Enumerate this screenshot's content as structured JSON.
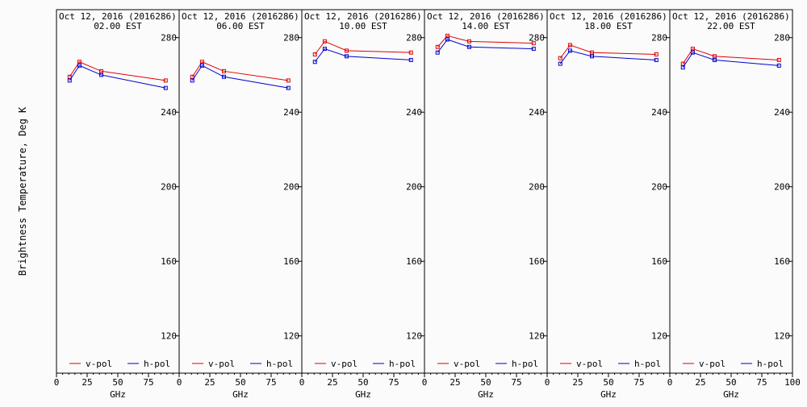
{
  "chart_data": [
    {
      "type": "line",
      "title": "Oct 12, 2016 (2016286)",
      "subtitle": "02.00 EST",
      "xlabel": "GHz",
      "ylabel": "Brightness Temperature, Deg K",
      "xlim": [
        0,
        100
      ],
      "ylim": [
        100,
        295
      ],
      "xticks": [
        0,
        25,
        50,
        75,
        100
      ],
      "yticks": [
        120,
        160,
        200,
        240,
        280
      ],
      "x": [
        10.7,
        18.7,
        36.5,
        89.0
      ],
      "series": [
        {
          "name": "v-pol",
          "color": "#e00000",
          "values": [
            259,
            267,
            262,
            257
          ]
        },
        {
          "name": "h-pol",
          "color": "#0000d0",
          "values": [
            257,
            265,
            260,
            253
          ]
        }
      ]
    },
    {
      "type": "line",
      "title": "Oct 12, 2016 (2016286)",
      "subtitle": "06.00 EST",
      "xlabel": "GHz",
      "ylabel": "",
      "xlim": [
        0,
        100
      ],
      "ylim": [
        100,
        295
      ],
      "xticks": [
        0,
        25,
        50,
        75,
        100
      ],
      "yticks": [
        120,
        160,
        200,
        240,
        280
      ],
      "x": [
        10.7,
        18.7,
        36.5,
        89.0
      ],
      "series": [
        {
          "name": "v-pol",
          "color": "#e00000",
          "values": [
            259,
            267,
            262,
            257
          ]
        },
        {
          "name": "h-pol",
          "color": "#0000d0",
          "values": [
            257,
            265,
            259,
            253
          ]
        }
      ]
    },
    {
      "type": "line",
      "title": "Oct 12, 2016 (2016286)",
      "subtitle": "10.00 EST",
      "xlabel": "GHz",
      "ylabel": "",
      "xlim": [
        0,
        100
      ],
      "ylim": [
        100,
        295
      ],
      "xticks": [
        0,
        25,
        50,
        75,
        100
      ],
      "yticks": [
        120,
        160,
        200,
        240,
        280
      ],
      "x": [
        10.7,
        18.7,
        36.5,
        89.0
      ],
      "series": [
        {
          "name": "v-pol",
          "color": "#e00000",
          "values": [
            271,
            278,
            273,
            272
          ]
        },
        {
          "name": "h-pol",
          "color": "#0000d0",
          "values": [
            267,
            274,
            270,
            268
          ]
        }
      ]
    },
    {
      "type": "line",
      "title": "Oct 12, 2016 (2016286)",
      "subtitle": "14.00 EST",
      "xlabel": "GHz",
      "ylabel": "",
      "xlim": [
        0,
        100
      ],
      "ylim": [
        100,
        295
      ],
      "xticks": [
        0,
        25,
        50,
        75,
        100
      ],
      "yticks": [
        120,
        160,
        200,
        240,
        280
      ],
      "x": [
        10.7,
        18.7,
        36.5,
        89.0
      ],
      "series": [
        {
          "name": "v-pol",
          "color": "#e00000",
          "values": [
            275,
            281,
            278,
            277
          ]
        },
        {
          "name": "h-pol",
          "color": "#0000d0",
          "values": [
            272,
            279,
            275,
            274
          ]
        }
      ]
    },
    {
      "type": "line",
      "title": "Oct 12, 2016 (2016286)",
      "subtitle": "18.00 EST",
      "xlabel": "GHz",
      "ylabel": "",
      "xlim": [
        0,
        100
      ],
      "ylim": [
        100,
        295
      ],
      "xticks": [
        0,
        25,
        50,
        75,
        100
      ],
      "yticks": [
        120,
        160,
        200,
        240,
        280
      ],
      "x": [
        10.7,
        18.7,
        36.5,
        89.0
      ],
      "series": [
        {
          "name": "v-pol",
          "color": "#e00000",
          "values": [
            269,
            276,
            272,
            271
          ]
        },
        {
          "name": "h-pol",
          "color": "#0000d0",
          "values": [
            266,
            273,
            270,
            268
          ]
        }
      ]
    },
    {
      "type": "line",
      "title": "Oct 12, 2016 (2016286)",
      "subtitle": "22.00 EST",
      "xlabel": "GHz",
      "ylabel": "",
      "xlim": [
        0,
        100
      ],
      "ylim": [
        100,
        295
      ],
      "xticks": [
        0,
        25,
        50,
        75,
        100
      ],
      "yticks": [
        120,
        160,
        200,
        240,
        280
      ],
      "x": [
        10.7,
        18.7,
        36.5,
        89.0
      ],
      "series": [
        {
          "name": "v-pol",
          "color": "#e00000",
          "values": [
            266,
            274,
            270,
            268
          ]
        },
        {
          "name": "h-pol",
          "color": "#0000d0",
          "values": [
            264,
            272,
            268,
            265
          ]
        }
      ]
    }
  ]
}
